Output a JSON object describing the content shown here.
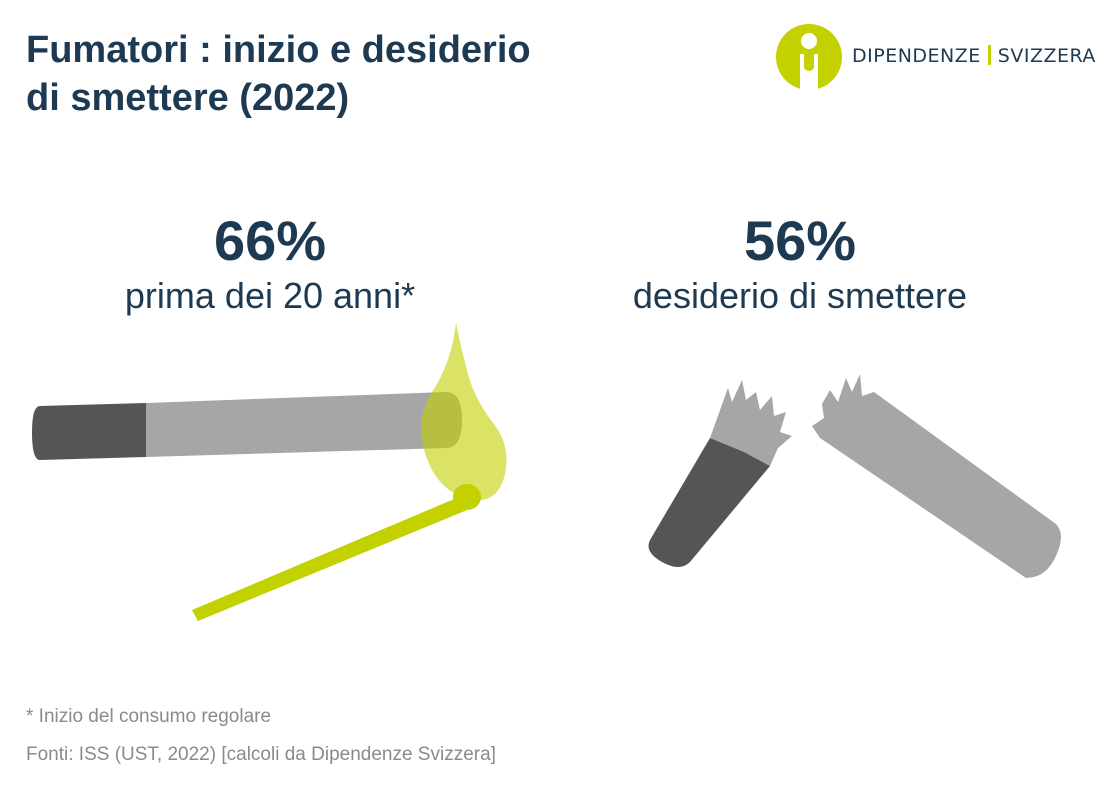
{
  "title": {
    "line1": "Fumatori : inizio e desiderio",
    "line2": "di smettere (2022)"
  },
  "logo": {
    "left_text": "DIPENDENZE",
    "right_text": "SVIZZERA",
    "icon": "person-circle-logo-icon"
  },
  "stats": [
    {
      "value": "66%",
      "label": "prima dei 20 anni*",
      "icon": "lit-cigarette-match-icon"
    },
    {
      "value": "56%",
      "label": "desiderio di smettere",
      "icon": "broken-cigarette-icon"
    }
  ],
  "footnote": "* Inizio del consumo regolare",
  "source": "Fonti: ISS (UST, 2022) [calcoli da Dipendenze Svizzera]",
  "colors": {
    "title": "#1d3a52",
    "accent": "#c3d100",
    "filter": "#555555",
    "paper": "#a6a6a6",
    "footnote": "#8a8a8a"
  }
}
